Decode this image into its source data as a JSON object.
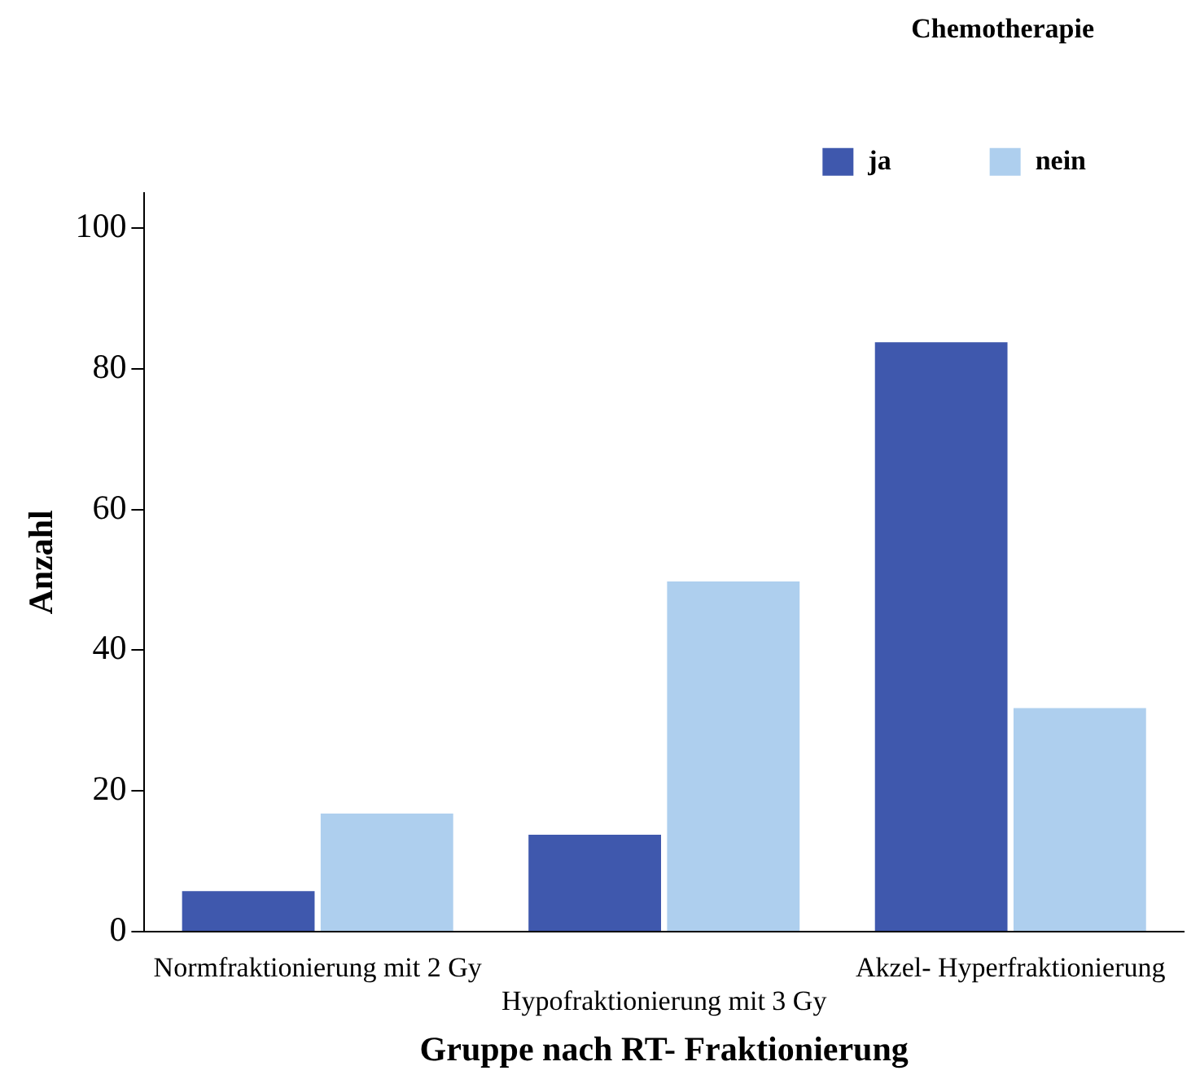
{
  "chart_data": {
    "type": "bar",
    "xlabel": "Gruppe nach RT- Fraktionierung",
    "ylabel": "Anzahl",
    "legend_title": "Chemotherapie",
    "categories": [
      "Normfraktionierung mit 2 Gy",
      "Hypofraktionierung mit 3 Gy",
      "Akzel- Hyperfraktionierung"
    ],
    "series": [
      {
        "name": "ja",
        "color": "#3f58ad",
        "values": [
          6,
          14,
          84
        ]
      },
      {
        "name": "nein",
        "color": "#aecfee",
        "values": [
          17,
          50,
          32
        ]
      }
    ],
    "ylim": [
      0,
      105
    ],
    "yticks": [
      0,
      20,
      40,
      60,
      80,
      100
    ],
    "grid": false,
    "legend": "top right"
  }
}
